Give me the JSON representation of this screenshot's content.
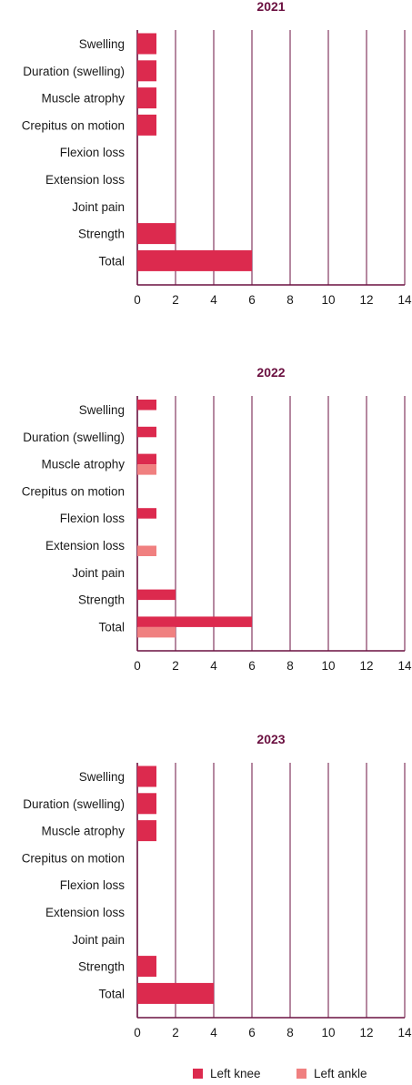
{
  "colors": {
    "accent": "#6b1040",
    "grid": "#6b1040",
    "knee": "#dc2a4e",
    "ankle": "#f08080"
  },
  "legend": [
    {
      "name": "Left knee",
      "color": "#dc2a4e"
    },
    {
      "name": "Left ankle",
      "color": "#f08080"
    }
  ],
  "chart_data": [
    {
      "type": "bar",
      "orientation": "horizontal",
      "title": "2021",
      "categories": [
        "Swelling",
        "Duration (swelling)",
        "Muscle atrophy",
        "Crepitus on motion",
        "Flexion loss",
        "Extension loss",
        "Joint pain",
        "Strength",
        "Total"
      ],
      "series": [
        {
          "name": "Left knee",
          "values": [
            1,
            1,
            1,
            1,
            0,
            0,
            0,
            2,
            6
          ]
        },
        {
          "name": "Left ankle",
          "values": [
            0,
            0,
            0,
            0,
            0,
            0,
            0,
            0,
            0
          ]
        }
      ],
      "xlim": [
        0,
        14
      ],
      "xticks": [
        "0",
        "2",
        "4",
        "6",
        "8",
        "10",
        "12",
        "14"
      ],
      "grid": true
    },
    {
      "type": "bar",
      "orientation": "horizontal",
      "title": "2022",
      "categories": [
        "Swelling",
        "Duration (swelling)",
        "Muscle atrophy",
        "Crepitus on motion",
        "Flexion loss",
        "Extension loss",
        "Joint pain",
        "Strength",
        "Total"
      ],
      "series": [
        {
          "name": "Left knee",
          "values": [
            1,
            1,
            1,
            0,
            1,
            0,
            0,
            2,
            6
          ]
        },
        {
          "name": "Left ankle",
          "values": [
            0,
            0,
            1,
            0,
            0,
            1,
            0,
            0,
            2
          ]
        }
      ],
      "xlim": [
        0,
        14
      ],
      "xticks": [
        "0",
        "2",
        "4",
        "6",
        "8",
        "10",
        "12",
        "14"
      ],
      "grid": true
    },
    {
      "type": "bar",
      "orientation": "horizontal",
      "title": "2023",
      "categories": [
        "Swelling",
        "Duration (swelling)",
        "Muscle atrophy",
        "Crepitus on motion",
        "Flexion loss",
        "Extension loss",
        "Joint pain",
        "Strength",
        "Total"
      ],
      "series": [
        {
          "name": "Left knee",
          "values": [
            1,
            1,
            1,
            0,
            0,
            0,
            0,
            1,
            4
          ]
        },
        {
          "name": "Left ankle",
          "values": [
            0,
            0,
            0,
            0,
            0,
            0,
            0,
            0,
            0
          ]
        }
      ],
      "xlim": [
        0,
        14
      ],
      "xticks": [
        "0",
        "2",
        "4",
        "6",
        "8",
        "10",
        "12",
        "14"
      ],
      "grid": true
    }
  ]
}
